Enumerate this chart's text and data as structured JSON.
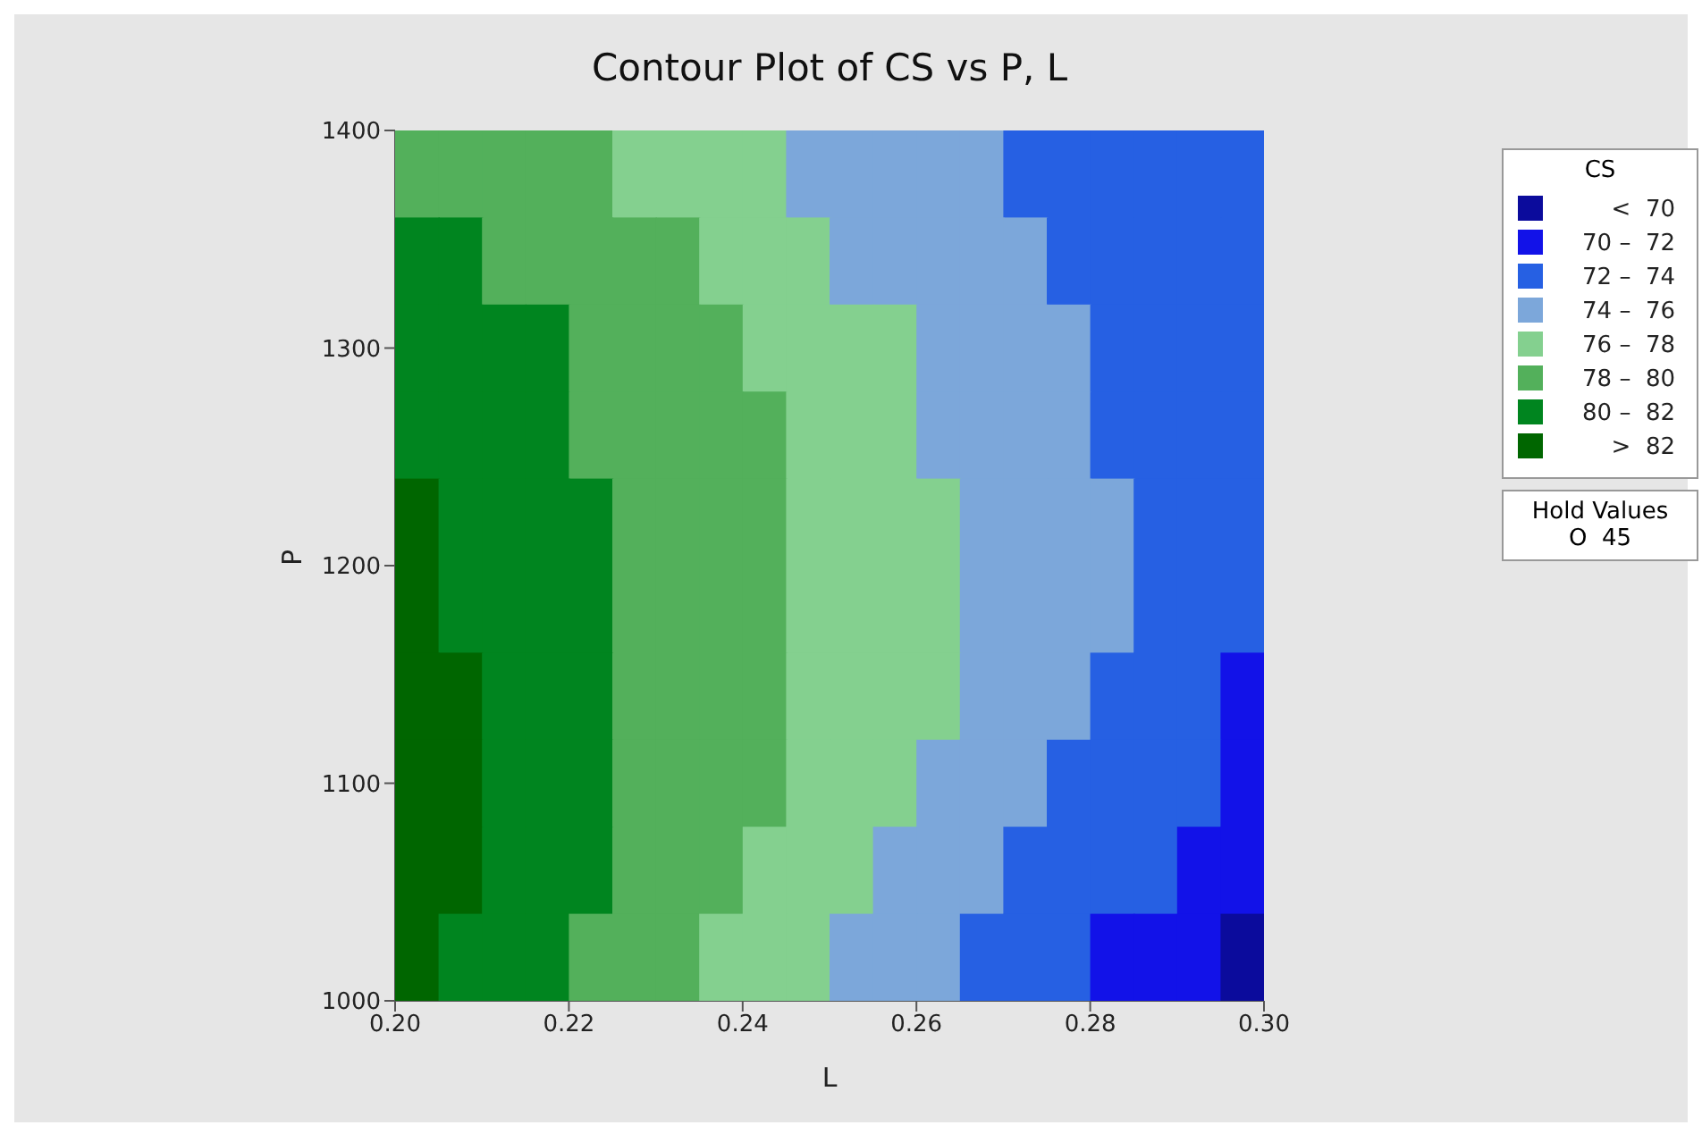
{
  "chart_data": {
    "type": "heatmap",
    "title": "Contour Plot of CS vs P, L",
    "xlabel": "L",
    "ylabel": "P",
    "clabel": "CS",
    "x": [
      0.2025,
      0.2075,
      0.2125,
      0.2175,
      0.2225,
      0.2275,
      0.2325,
      0.2375,
      0.2425,
      0.2475,
      0.2525,
      0.2575,
      0.2625,
      0.2675,
      0.2725,
      0.2775,
      0.2825,
      0.2875,
      0.2925,
      0.2975
    ],
    "y": [
      1380,
      1340,
      1300,
      1260,
      1220,
      1180,
      1140,
      1100,
      1060,
      1020
    ],
    "xlim": [
      0.2,
      0.3
    ],
    "ylim": [
      1000,
      1400
    ],
    "xticks": [
      {
        "value": 0.2,
        "label": "0.20"
      },
      {
        "value": 0.22,
        "label": "0.22"
      },
      {
        "value": 0.24,
        "label": "0.24"
      },
      {
        "value": 0.26,
        "label": "0.26"
      },
      {
        "value": 0.28,
        "label": "0.28"
      },
      {
        "value": 0.3,
        "label": "0.30"
      }
    ],
    "yticks": [
      1000,
      1100,
      1200,
      1300,
      1400
    ],
    "clim": [
      68,
      84
    ],
    "cticks": [
      {
        "value": 69,
        "label": "<  70"
      },
      {
        "value": 71,
        "label": "70 –  72"
      },
      {
        "value": 73,
        "label": "72 –  74"
      },
      {
        "value": 75,
        "label": "74 –  76"
      },
      {
        "value": 77,
        "label": "76 –  78"
      },
      {
        "value": 79,
        "label": "78 –  80"
      },
      {
        "value": 81,
        "label": "80 –  82"
      },
      {
        "value": 83,
        "label": ">  82"
      }
    ],
    "colors": [
      "#0b0b9c",
      "#1212e8",
      "#2660e3",
      "#7ca7da",
      "#84d08f",
      "#53b05b",
      "#00851f",
      "#006600"
    ],
    "cells": [
      [
        79,
        79,
        79,
        79,
        79,
        77,
        77,
        77,
        77,
        75,
        75,
        75,
        75,
        75,
        73,
        73,
        73,
        73,
        73,
        73
      ],
      [
        81,
        81,
        79,
        79,
        79,
        79,
        79,
        77,
        77,
        77,
        75,
        75,
        75,
        75,
        75,
        73,
        73,
        73,
        73,
        73
      ],
      [
        81,
        81,
        81,
        81,
        79,
        79,
        79,
        79,
        77,
        77,
        77,
        77,
        75,
        75,
        75,
        75,
        73,
        73,
        73,
        73
      ],
      [
        81,
        81,
        81,
        81,
        79,
        79,
        79,
        79,
        79,
        77,
        77,
        77,
        75,
        75,
        75,
        75,
        73,
        73,
        73,
        73
      ],
      [
        83,
        81,
        81,
        81,
        81,
        79,
        79,
        79,
        79,
        77,
        77,
        77,
        77,
        75,
        75,
        75,
        75,
        73,
        73,
        73
      ],
      [
        83,
        81,
        81,
        81,
        81,
        79,
        79,
        79,
        79,
        77,
        77,
        77,
        77,
        75,
        75,
        75,
        75,
        73,
        73,
        73
      ],
      [
        83,
        83,
        81,
        81,
        81,
        79,
        79,
        79,
        79,
        77,
        77,
        77,
        77,
        75,
        75,
        75,
        73,
        73,
        73,
        71
      ],
      [
        83,
        83,
        81,
        81,
        81,
        79,
        79,
        79,
        79,
        77,
        77,
        77,
        75,
        75,
        75,
        73,
        73,
        73,
        73,
        71
      ],
      [
        83,
        83,
        81,
        81,
        81,
        79,
        79,
        79,
        77,
        77,
        77,
        75,
        75,
        75,
        73,
        73,
        73,
        73,
        71,
        71
      ],
      [
        83,
        81,
        81,
        81,
        79,
        79,
        79,
        77,
        77,
        77,
        75,
        75,
        75,
        73,
        73,
        73,
        71,
        71,
        71,
        69
      ]
    ],
    "annotations": [
      "Hold Values",
      "O  45"
    ]
  }
}
